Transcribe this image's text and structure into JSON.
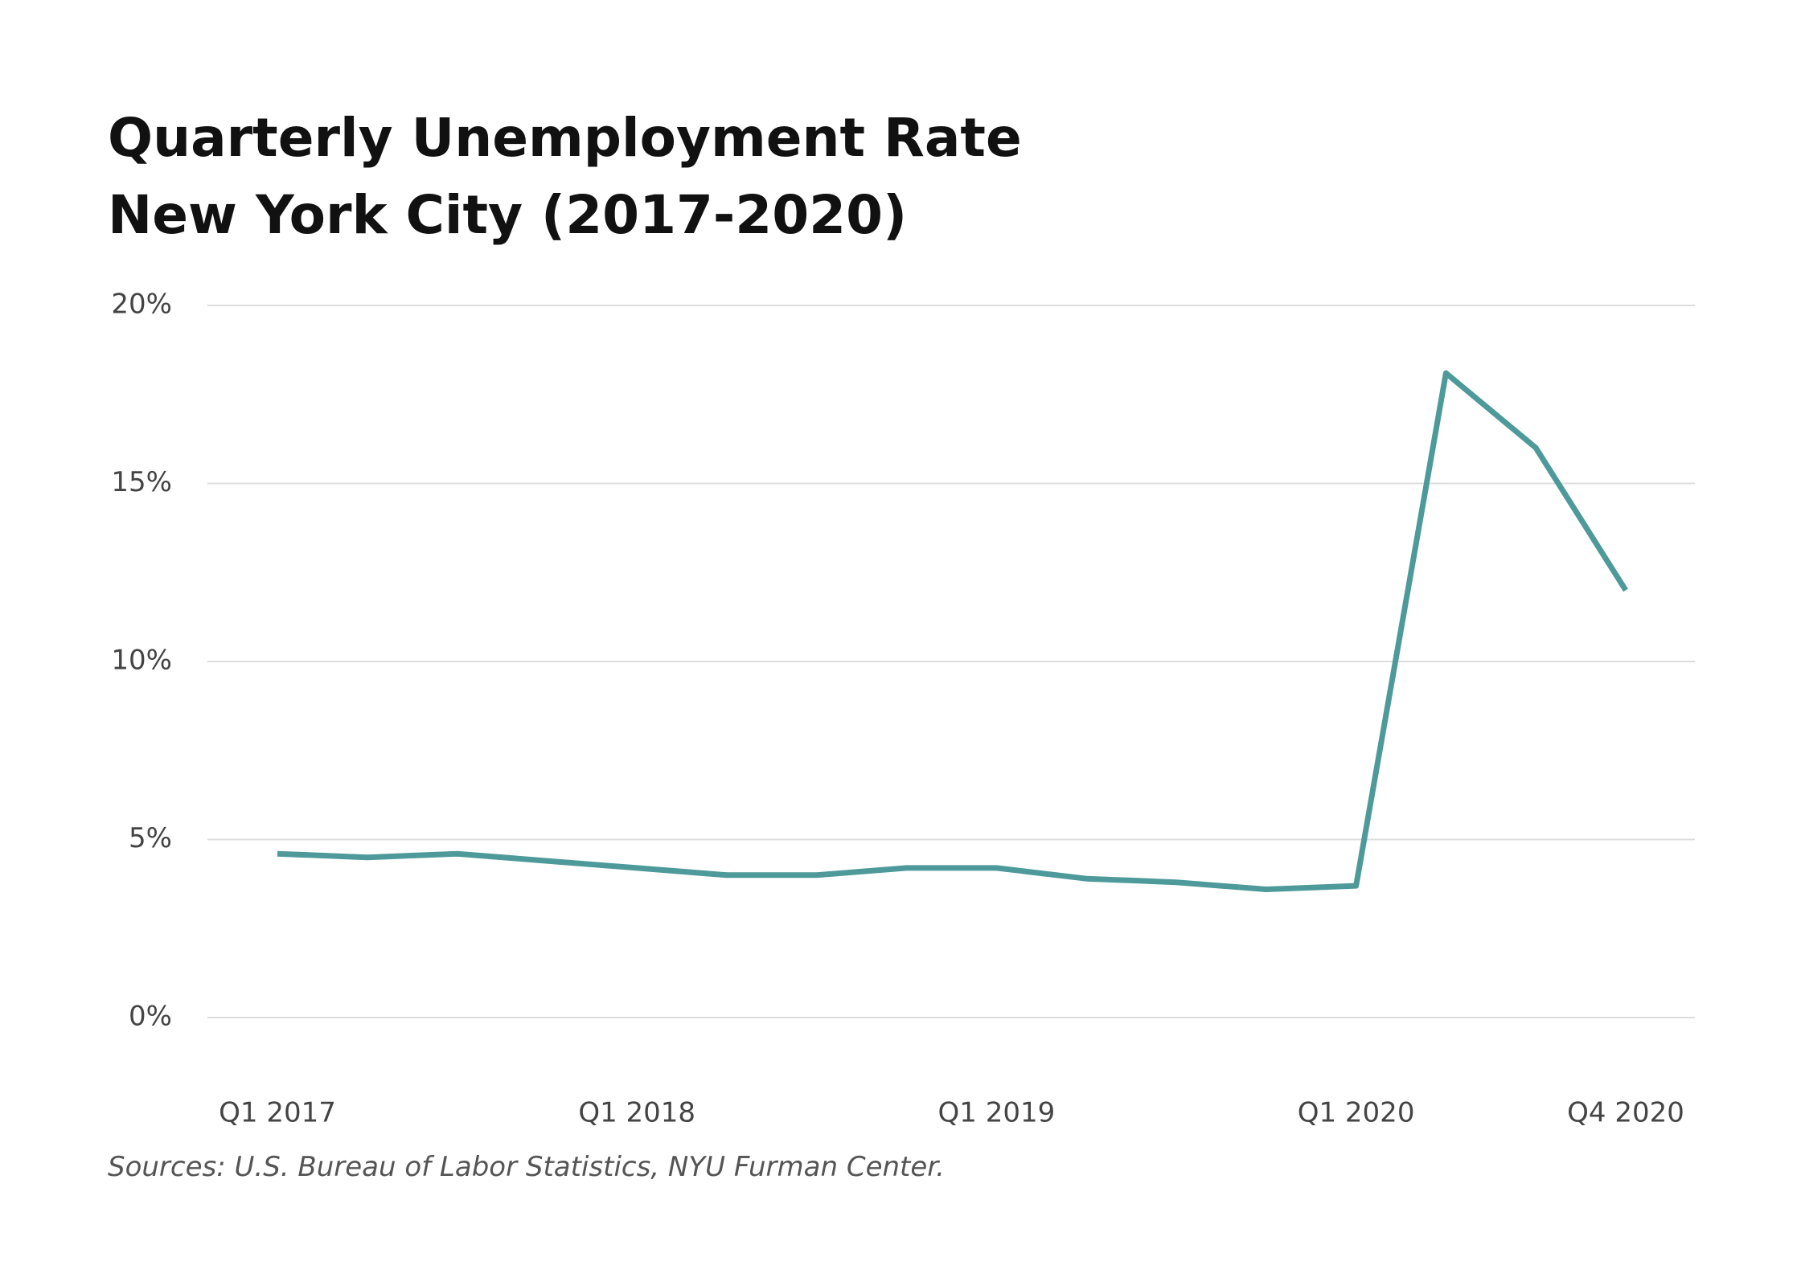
{
  "title_line1": "Quarterly Unemployment Rate",
  "title_line2": "New York City (2017-2020)",
  "source": "Sources: U.S. Bureau of Labor Statistics, NYU Furman Center.",
  "colors": {
    "line": "#4e9a9a",
    "grid": "#dddddd",
    "tick_text": "#444444"
  },
  "chart_data": {
    "type": "line",
    "x": [
      "Q1 2017",
      "Q2 2017",
      "Q3 2017",
      "Q4 2017",
      "Q1 2018",
      "Q2 2018",
      "Q3 2018",
      "Q4 2018",
      "Q1 2019",
      "Q2 2019",
      "Q3 2019",
      "Q4 2019",
      "Q1 2020",
      "Q2 2020",
      "Q3 2020",
      "Q4 2020"
    ],
    "x_tick_labels": [
      "Q1 2017",
      "Q1 2018",
      "Q1 2019",
      "Q1 2020",
      "Q4 2020"
    ],
    "series": [
      {
        "values": [
          4.6,
          4.5,
          4.6,
          4.4,
          4.2,
          4.0,
          4.0,
          4.2,
          4.2,
          3.9,
          3.8,
          3.6,
          3.7,
          18.1,
          16.0,
          12.0
        ]
      }
    ],
    "y_tick_labels": [
      "0%",
      "5%",
      "10%",
      "15%",
      "20%"
    ],
    "ylim": [
      0,
      20
    ],
    "grid": true,
    "legend": "none"
  }
}
